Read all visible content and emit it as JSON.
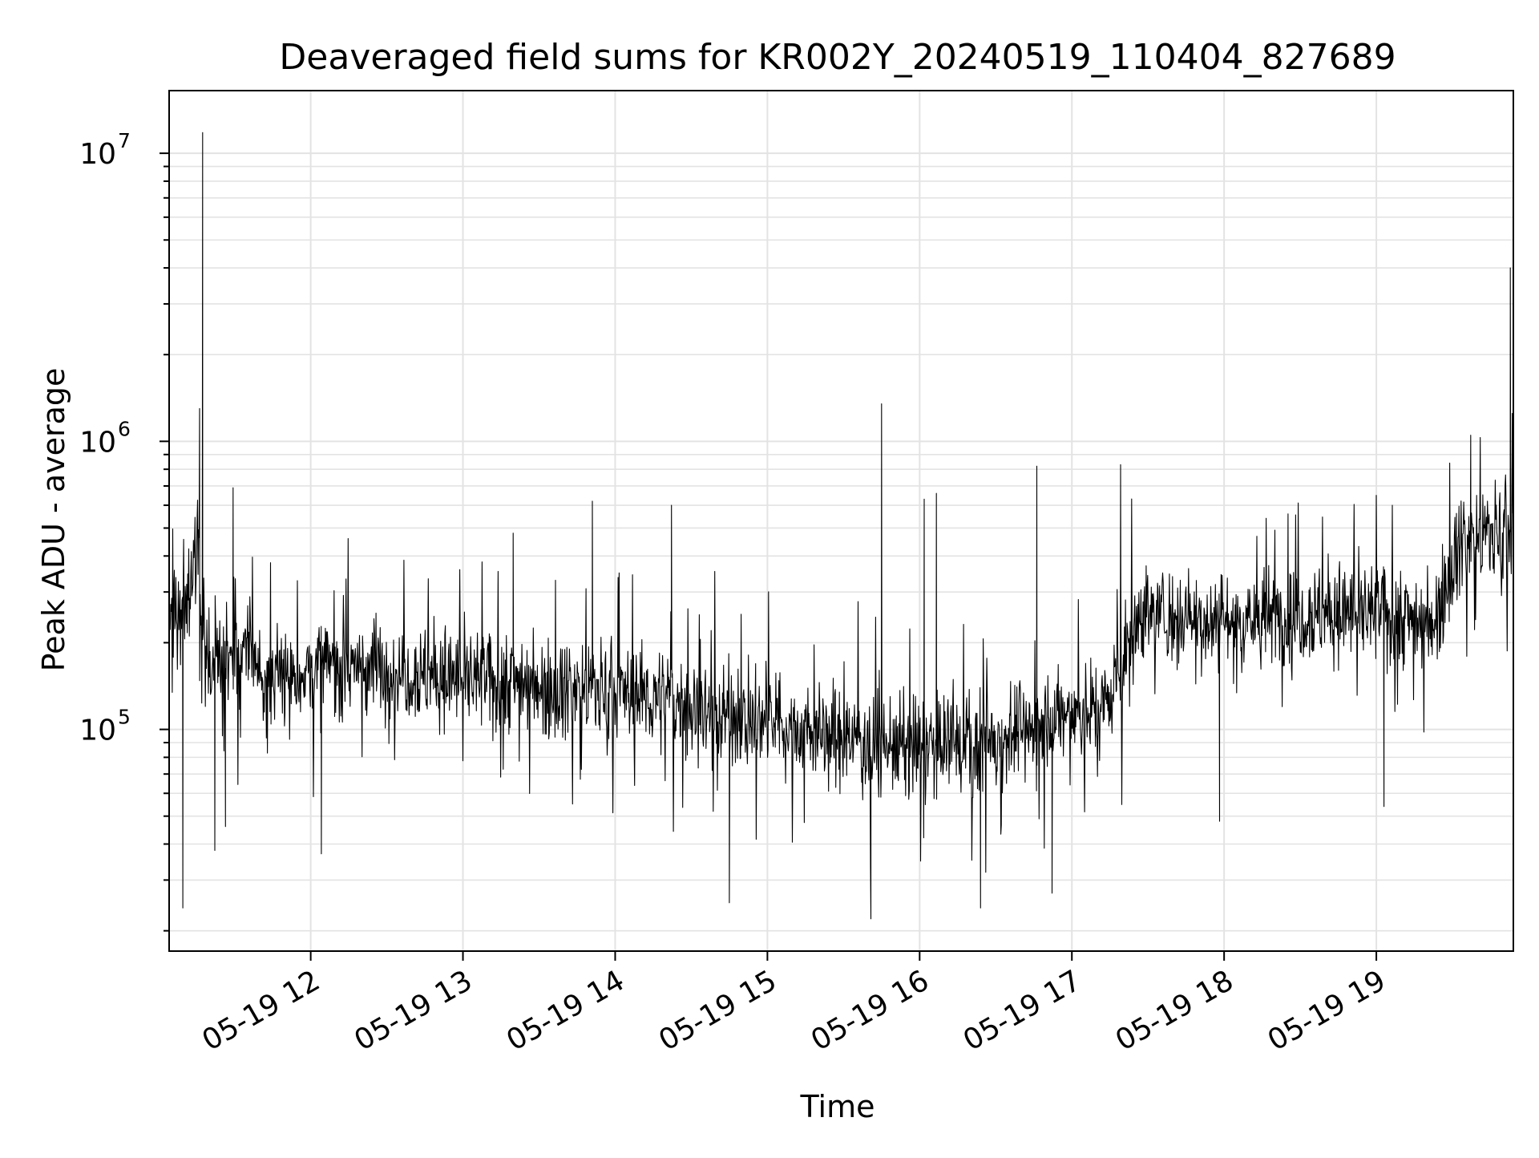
{
  "chart_data": {
    "type": "line",
    "title": "Deaveraged field sums for KR002Y_20240519_110404_827689",
    "xlabel": "Time",
    "ylabel": "Peak ADU - average",
    "x_range": [
      "2024-05-19 11:04",
      "2024-05-19 19:53"
    ],
    "xlim": [
      11.07,
      19.9
    ],
    "ylim": [
      17000,
      16500000
    ],
    "y_scale": "log",
    "grid": true,
    "legend": "none",
    "colors": {
      "line": "#000000",
      "grid": "#e3e3e3",
      "frame": "#000000"
    },
    "x_ticks": [
      {
        "value": 12,
        "label": "05-19 12"
      },
      {
        "value": 13,
        "label": "05-19 13"
      },
      {
        "value": 14,
        "label": "05-19 14"
      },
      {
        "value": 15,
        "label": "05-19 15"
      },
      {
        "value": 16,
        "label": "05-19 16"
      },
      {
        "value": 17,
        "label": "05-19 17"
      },
      {
        "value": 18,
        "label": "05-19 18"
      },
      {
        "value": 19,
        "label": "05-19 19"
      }
    ],
    "y_ticks": [
      {
        "value": 100000,
        "base": "10",
        "exp": "5"
      },
      {
        "value": 1000000,
        "base": "10",
        "exp": "6"
      },
      {
        "value": 10000000,
        "base": "10",
        "exp": "7"
      }
    ],
    "series": [
      {
        "x": [
          11.07,
          11.15,
          11.2,
          11.25,
          11.3,
          11.4,
          11.5,
          11.6,
          11.7,
          11.8,
          12.0,
          12.2,
          12.4,
          12.6,
          12.8,
          13.0,
          13.2,
          13.4,
          13.6,
          13.8,
          14.0,
          14.2,
          14.4,
          14.6,
          14.8,
          15.0,
          15.2,
          15.4,
          15.6,
          15.8,
          16.0,
          16.2,
          16.4,
          16.6,
          16.8,
          17.0,
          17.2,
          17.35,
          17.45,
          17.6,
          17.8,
          18.0,
          18.2,
          18.4,
          18.6,
          18.8,
          19.0,
          19.2,
          19.38,
          19.45,
          19.55,
          19.7,
          19.9
        ],
        "y": [
          230000,
          270000,
          300000,
          420000,
          200000,
          170000,
          160000,
          200000,
          140000,
          150000,
          160000,
          170000,
          165000,
          160000,
          155000,
          150000,
          145000,
          150000,
          140000,
          140000,
          135000,
          130000,
          125000,
          115000,
          110000,
          105000,
          100000,
          95000,
          92000,
          88000,
          85000,
          88000,
          90000,
          95000,
          105000,
          110000,
          120000,
          170000,
          260000,
          250000,
          245000,
          240000,
          240000,
          250000,
          255000,
          255000,
          250000,
          245000,
          240000,
          320000,
          450000,
          470000,
          500000
        ],
        "spikes": [
          {
            "x": 11.29,
            "y": 11800000
          },
          {
            "x": 11.27,
            "y": 1300000
          },
          {
            "x": 11.16,
            "y": 24000
          },
          {
            "x": 11.49,
            "y": 690000
          },
          {
            "x": 11.37,
            "y": 38000
          },
          {
            "x": 11.44,
            "y": 46000
          },
          {
            "x": 12.07,
            "y": 37000
          },
          {
            "x": 13.33,
            "y": 480000
          },
          {
            "x": 13.85,
            "y": 620000
          },
          {
            "x": 14.37,
            "y": 600000
          },
          {
            "x": 14.75,
            "y": 25000
          },
          {
            "x": 15.68,
            "y": 22000
          },
          {
            "x": 15.75,
            "y": 1350000
          },
          {
            "x": 16.03,
            "y": 630000
          },
          {
            "x": 16.11,
            "y": 660000
          },
          {
            "x": 16.4,
            "y": 24000
          },
          {
            "x": 16.77,
            "y": 820000
          },
          {
            "x": 16.87,
            "y": 27000
          },
          {
            "x": 17.32,
            "y": 830000
          },
          {
            "x": 17.97,
            "y": 48000
          },
          {
            "x": 18.42,
            "y": 560000
          },
          {
            "x": 19.05,
            "y": 54000
          },
          {
            "x": 19.62,
            "y": 1050000
          },
          {
            "x": 19.88,
            "y": 4000000
          }
        ]
      }
    ]
  }
}
